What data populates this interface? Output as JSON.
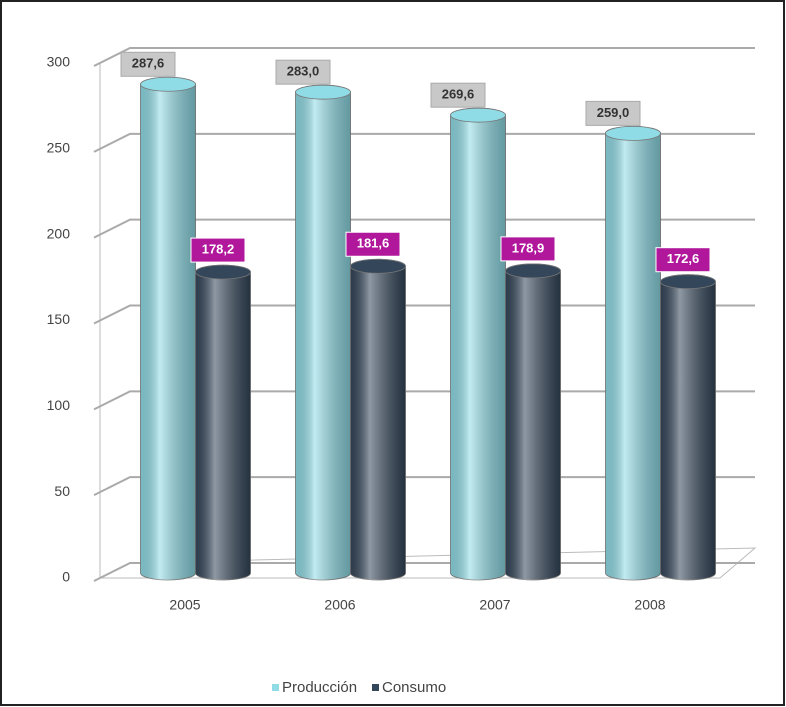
{
  "chart_data": {
    "type": "bar",
    "categories": [
      "2005",
      "2006",
      "2007",
      "2008"
    ],
    "series": [
      {
        "name": "Producción",
        "color": "#8fdbe6",
        "values": [
          287.6,
          283.0,
          269.6,
          259.0
        ],
        "value_labels": [
          "287,6",
          "283,0",
          "269,6",
          "259,0"
        ]
      },
      {
        "name": "Consumo",
        "color": "#34465a",
        "values": [
          178.2,
          181.6,
          178.9,
          172.6
        ],
        "value_labels": [
          "178,2",
          "181,6",
          "178,9",
          "172,6"
        ]
      }
    ],
    "ylim": [
      0,
      300
    ],
    "yticks": [
      0,
      50,
      100,
      150,
      200,
      250,
      300
    ],
    "grid": true,
    "legend": "bottom"
  }
}
